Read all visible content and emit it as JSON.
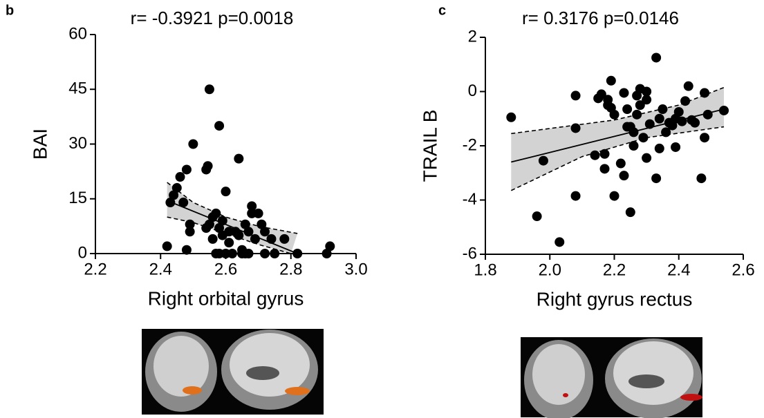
{
  "chart_data": [
    {
      "type": "scatter",
      "panel_label": "b",
      "title": "r= -0.3921 p=0.0018",
      "x_label": "Right orbital gyrus",
      "y_label": "BAI",
      "color": "#000000",
      "x": [
        2.42,
        2.43,
        2.44,
        2.45,
        2.46,
        2.47,
        2.48,
        2.48,
        2.49,
        2.49,
        2.5,
        2.54,
        2.54,
        2.545,
        2.55,
        2.55,
        2.56,
        2.56,
        2.57,
        2.57,
        2.58,
        2.58,
        2.58,
        2.59,
        2.59,
        2.6,
        2.6,
        2.61,
        2.61,
        2.62,
        2.63,
        2.64,
        2.64,
        2.65,
        2.65,
        2.66,
        2.66,
        2.67,
        2.67,
        2.68,
        2.68,
        2.69,
        2.7,
        2.71,
        2.72,
        2.72,
        2.74,
        2.75,
        2.78,
        2.82,
        2.91,
        2.92
      ],
      "values": [
        2,
        14,
        16,
        18,
        21,
        14,
        23,
        1,
        6,
        8,
        30,
        7,
        23,
        24,
        45,
        8,
        10,
        4,
        0,
        11,
        35,
        7,
        0,
        9,
        5,
        17,
        0,
        6,
        3,
        0,
        6,
        5,
        26,
        1,
        0,
        8,
        0,
        0,
        6,
        13,
        11,
        4,
        11,
        8,
        6,
        0,
        4,
        0,
        4,
        0,
        0,
        2
      ],
      "fit": {
        "x": [
          2.42,
          2.82
        ],
        "y": [
          14.5,
          0
        ]
      },
      "ci_upper": {
        "x": [
          2.42,
          2.5,
          2.6,
          2.7,
          2.82
        ],
        "y": [
          19.5,
          14,
          10,
          7.5,
          5.5
        ]
      },
      "ci_lower": {
        "x": [
          2.42,
          2.5,
          2.6,
          2.7,
          2.8
        ],
        "y": [
          10,
          8.5,
          5.5,
          2.5,
          0
        ]
      },
      "xlim": [
        2.2,
        3.0
      ],
      "ylim": [
        0,
        60
      ],
      "xticks": [
        2.2,
        2.4,
        2.6,
        2.8,
        {
          "value": 3,
          "label": "3.0"
        }
      ],
      "yticks": [
        0,
        15,
        30,
        45,
        60
      ]
    },
    {
      "type": "scatter",
      "panel_label": "c",
      "title": "r= 0.3176 p=0.0146",
      "x_label": "Right gyrus rectus",
      "y_label": "TRAIL B",
      "color": "#000000",
      "x": [
        1.88,
        1.96,
        1.98,
        2.03,
        2.08,
        2.08,
        2.08,
        2.14,
        2.15,
        2.16,
        2.17,
        2.17,
        2.18,
        2.18,
        2.19,
        2.19,
        2.2,
        2.2,
        2.22,
        2.23,
        2.23,
        2.24,
        2.24,
        2.25,
        2.25,
        2.26,
        2.26,
        2.27,
        2.27,
        2.28,
        2.28,
        2.29,
        2.3,
        2.3,
        2.3,
        2.31,
        2.33,
        2.33,
        2.34,
        2.34,
        2.35,
        2.36,
        2.37,
        2.38,
        2.39,
        2.39,
        2.4,
        2.41,
        2.42,
        2.43,
        2.44,
        2.45,
        2.47,
        2.48,
        2.48,
        2.49,
        2.54
      ],
      "values": [
        -0.95,
        -4.6,
        -2.55,
        -5.55,
        -0.15,
        -1.35,
        -3.85,
        -2.35,
        -0.25,
        -0.1,
        -2.3,
        -2.85,
        -0.5,
        -0.3,
        0.4,
        -0.6,
        -3.85,
        -0.85,
        -2.65,
        -0.05,
        -3.1,
        -1.3,
        -0.65,
        -4.45,
        -1.3,
        -2.0,
        -1.5,
        -0.15,
        -0.85,
        0.1,
        -0.5,
        -1.7,
        -2.45,
        -0.3,
        0.0,
        -1.2,
        1.25,
        -3.2,
        -1.0,
        -2.1,
        -0.65,
        -1.5,
        -1.15,
        -1.25,
        -2.05,
        -1.0,
        -0.75,
        -1.1,
        -0.35,
        0.2,
        -1.05,
        -1.15,
        -3.2,
        -1.7,
        -0.05,
        -0.85,
        -0.7
      ],
      "fit": {
        "x": [
          1.88,
          2.54
        ],
        "y": [
          -2.6,
          -0.65
        ]
      },
      "ci_upper": {
        "x": [
          1.88,
          2.2,
          2.4,
          2.54
        ],
        "y": [
          -1.55,
          -1.05,
          -0.5,
          0.15
        ]
      },
      "ci_lower": {
        "x": [
          1.88,
          2.1,
          2.3,
          2.54
        ],
        "y": [
          -3.65,
          -2.4,
          -1.7,
          -1.3
        ]
      },
      "xlim": [
        1.8,
        2.6
      ],
      "ylim": [
        -6,
        2
      ],
      "xticks": [
        1.8,
        {
          "value": 2,
          "label": "2.0"
        },
        2.2,
        2.4,
        2.6
      ],
      "yticks": [
        -6,
        -4,
        -2,
        0,
        2
      ]
    }
  ]
}
